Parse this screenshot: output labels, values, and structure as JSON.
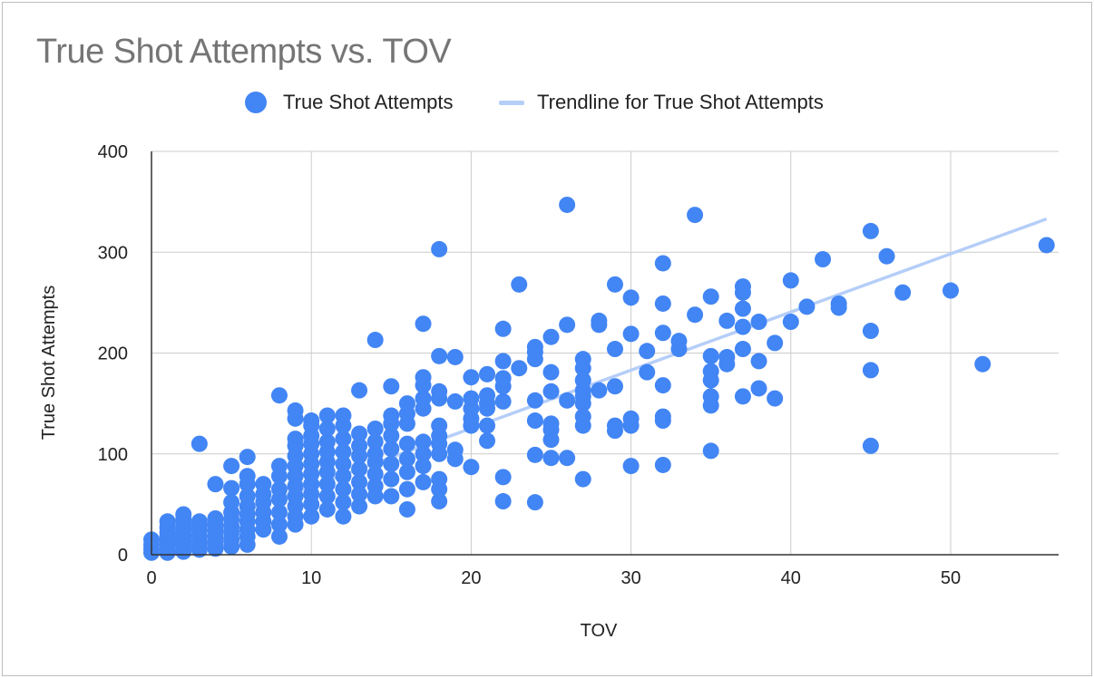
{
  "chart_data": {
    "type": "scatter",
    "title": "True Shot Attempts vs. TOV",
    "xlabel": "TOV",
    "ylabel": "True Shot Attempts",
    "xlim": [
      0,
      56
    ],
    "ylim": [
      0,
      400
    ],
    "x_ticks": [
      "0",
      "10",
      "20",
      "30",
      "40",
      "50"
    ],
    "y_ticks": [
      "0",
      "100",
      "200",
      "300",
      "400"
    ],
    "grid": true,
    "legend_position": "top",
    "series": [
      {
        "name": "True Shot Attempts",
        "color": "#4285f4",
        "points": [
          [
            0,
            2
          ],
          [
            0,
            6
          ],
          [
            0,
            10
          ],
          [
            0,
            15
          ],
          [
            1,
            2
          ],
          [
            1,
            5
          ],
          [
            1,
            10
          ],
          [
            1,
            14
          ],
          [
            1,
            18
          ],
          [
            1,
            22
          ],
          [
            1,
            27
          ],
          [
            1,
            33
          ],
          [
            2,
            3
          ],
          [
            2,
            8
          ],
          [
            2,
            12
          ],
          [
            2,
            16
          ],
          [
            2,
            20
          ],
          [
            2,
            25
          ],
          [
            2,
            30
          ],
          [
            2,
            35
          ],
          [
            2,
            40
          ],
          [
            3,
            5
          ],
          [
            3,
            9
          ],
          [
            3,
            14
          ],
          [
            3,
            19
          ],
          [
            3,
            24
          ],
          [
            3,
            28
          ],
          [
            3,
            33
          ],
          [
            3,
            110
          ],
          [
            4,
            6
          ],
          [
            4,
            12
          ],
          [
            4,
            18
          ],
          [
            4,
            24
          ],
          [
            4,
            30
          ],
          [
            4,
            36
          ],
          [
            4,
            70
          ],
          [
            5,
            8
          ],
          [
            5,
            15
          ],
          [
            5,
            22
          ],
          [
            5,
            28
          ],
          [
            5,
            35
          ],
          [
            5,
            42
          ],
          [
            5,
            52
          ],
          [
            5,
            66
          ],
          [
            5,
            88
          ],
          [
            6,
            10
          ],
          [
            6,
            18
          ],
          [
            6,
            25
          ],
          [
            6,
            33
          ],
          [
            6,
            40
          ],
          [
            6,
            48
          ],
          [
            6,
            58
          ],
          [
            6,
            70
          ],
          [
            6,
            78
          ],
          [
            6,
            97
          ],
          [
            7,
            25
          ],
          [
            7,
            33
          ],
          [
            7,
            42
          ],
          [
            7,
            52
          ],
          [
            7,
            60
          ],
          [
            7,
            70
          ],
          [
            8,
            18
          ],
          [
            8,
            30
          ],
          [
            8,
            42
          ],
          [
            8,
            55
          ],
          [
            8,
            65
          ],
          [
            8,
            78
          ],
          [
            8,
            88
          ],
          [
            8,
            158
          ],
          [
            9,
            30
          ],
          [
            9,
            38
          ],
          [
            9,
            48
          ],
          [
            9,
            58
          ],
          [
            9,
            68
          ],
          [
            9,
            78
          ],
          [
            9,
            88
          ],
          [
            9,
            98
          ],
          [
            9,
            108
          ],
          [
            9,
            115
          ],
          [
            9,
            135
          ],
          [
            9,
            143
          ],
          [
            10,
            38
          ],
          [
            10,
            50
          ],
          [
            10,
            60
          ],
          [
            10,
            70
          ],
          [
            10,
            80
          ],
          [
            10,
            90
          ],
          [
            10,
            100
          ],
          [
            10,
            110
          ],
          [
            10,
            118
          ],
          [
            10,
            128
          ],
          [
            10,
            133
          ],
          [
            11,
            45
          ],
          [
            11,
            58
          ],
          [
            11,
            70
          ],
          [
            11,
            82
          ],
          [
            11,
            92
          ],
          [
            11,
            102
          ],
          [
            11,
            112
          ],
          [
            11,
            125
          ],
          [
            11,
            138
          ],
          [
            12,
            38
          ],
          [
            12,
            52
          ],
          [
            12,
            65
          ],
          [
            12,
            78
          ],
          [
            12,
            90
          ],
          [
            12,
            102
          ],
          [
            12,
            115
          ],
          [
            12,
            128
          ],
          [
            12,
            138
          ],
          [
            13,
            48
          ],
          [
            13,
            60
          ],
          [
            13,
            72
          ],
          [
            13,
            85
          ],
          [
            13,
            98
          ],
          [
            13,
            108
          ],
          [
            13,
            120
          ],
          [
            13,
            163
          ],
          [
            14,
            58
          ],
          [
            14,
            68
          ],
          [
            14,
            80
          ],
          [
            14,
            92
          ],
          [
            14,
            100
          ],
          [
            14,
            112
          ],
          [
            14,
            125
          ],
          [
            14,
            213
          ],
          [
            15,
            58
          ],
          [
            15,
            75
          ],
          [
            15,
            90
          ],
          [
            15,
            105
          ],
          [
            15,
            118
          ],
          [
            15,
            130
          ],
          [
            15,
            138
          ],
          [
            15,
            167
          ],
          [
            16,
            45
          ],
          [
            16,
            65
          ],
          [
            16,
            82
          ],
          [
            16,
            95
          ],
          [
            16,
            110
          ],
          [
            16,
            130
          ],
          [
            16,
            140
          ],
          [
            16,
            150
          ],
          [
            17,
            72
          ],
          [
            17,
            88
          ],
          [
            17,
            100
          ],
          [
            17,
            112
          ],
          [
            17,
            145
          ],
          [
            17,
            155
          ],
          [
            17,
            168
          ],
          [
            17,
            176
          ],
          [
            17,
            229
          ],
          [
            18,
            53
          ],
          [
            18,
            65
          ],
          [
            18,
            75
          ],
          [
            18,
            100
          ],
          [
            18,
            110
          ],
          [
            18,
            118
          ],
          [
            18,
            128
          ],
          [
            18,
            155
          ],
          [
            18,
            162
          ],
          [
            18,
            197
          ],
          [
            18,
            303
          ],
          [
            19,
            95
          ],
          [
            19,
            104
          ],
          [
            19,
            152
          ],
          [
            19,
            196
          ],
          [
            20,
            87
          ],
          [
            20,
            128
          ],
          [
            20,
            135
          ],
          [
            20,
            145
          ],
          [
            20,
            155
          ],
          [
            20,
            176
          ],
          [
            21,
            113
          ],
          [
            21,
            128
          ],
          [
            21,
            145
          ],
          [
            21,
            150
          ],
          [
            21,
            158
          ],
          [
            21,
            179
          ],
          [
            22,
            53
          ],
          [
            22,
            77
          ],
          [
            22,
            152
          ],
          [
            22,
            167
          ],
          [
            22,
            175
          ],
          [
            22,
            192
          ],
          [
            22,
            224
          ],
          [
            23,
            185
          ],
          [
            23,
            268
          ],
          [
            24,
            52
          ],
          [
            24,
            99
          ],
          [
            24,
            133
          ],
          [
            24,
            153
          ],
          [
            24,
            194
          ],
          [
            24,
            201
          ],
          [
            24,
            206
          ],
          [
            25,
            96
          ],
          [
            25,
            114
          ],
          [
            25,
            124
          ],
          [
            25,
            130
          ],
          [
            25,
            162
          ],
          [
            25,
            181
          ],
          [
            25,
            216
          ],
          [
            26,
            96
          ],
          [
            26,
            153
          ],
          [
            26,
            228
          ],
          [
            26,
            347
          ],
          [
            27,
            75
          ],
          [
            27,
            128
          ],
          [
            27,
            137
          ],
          [
            27,
            150
          ],
          [
            27,
            157
          ],
          [
            27,
            163
          ],
          [
            27,
            173
          ],
          [
            27,
            185
          ],
          [
            27,
            194
          ],
          [
            28,
            163
          ],
          [
            28,
            228
          ],
          [
            28,
            232
          ],
          [
            29,
            123
          ],
          [
            29,
            128
          ],
          [
            29,
            167
          ],
          [
            29,
            204
          ],
          [
            29,
            268
          ],
          [
            30,
            88
          ],
          [
            30,
            128
          ],
          [
            30,
            135
          ],
          [
            30,
            219
          ],
          [
            30,
            255
          ],
          [
            31,
            181
          ],
          [
            31,
            202
          ],
          [
            32,
            89
          ],
          [
            32,
            133
          ],
          [
            32,
            137
          ],
          [
            32,
            168
          ],
          [
            32,
            220
          ],
          [
            32,
            249
          ],
          [
            32,
            289
          ],
          [
            33,
            204
          ],
          [
            33,
            212
          ],
          [
            34,
            238
          ],
          [
            34,
            337
          ],
          [
            35,
            103
          ],
          [
            35,
            148
          ],
          [
            35,
            157
          ],
          [
            35,
            173
          ],
          [
            35,
            182
          ],
          [
            35,
            197
          ],
          [
            35,
            256
          ],
          [
            36,
            189
          ],
          [
            36,
            196
          ],
          [
            36,
            232
          ],
          [
            37,
            157
          ],
          [
            37,
            204
          ],
          [
            37,
            226
          ],
          [
            37,
            244
          ],
          [
            37,
            260
          ],
          [
            37,
            266
          ],
          [
            38,
            165
          ],
          [
            38,
            192
          ],
          [
            38,
            231
          ],
          [
            39,
            155
          ],
          [
            39,
            210
          ],
          [
            40,
            231
          ],
          [
            40,
            272
          ],
          [
            41,
            246
          ],
          [
            42,
            293
          ],
          [
            43,
            245
          ],
          [
            43,
            249
          ],
          [
            45,
            108
          ],
          [
            45,
            183
          ],
          [
            45,
            222
          ],
          [
            45,
            321
          ],
          [
            46,
            296
          ],
          [
            47,
            260
          ],
          [
            50,
            262
          ],
          [
            52,
            189
          ],
          [
            56,
            307
          ]
        ]
      },
      {
        "name": "Trendline for True Shot Attempts",
        "color": "#b5cef8",
        "type": "line",
        "x": [
          0,
          56
        ],
        "y": [
          10,
          333
        ]
      }
    ]
  }
}
